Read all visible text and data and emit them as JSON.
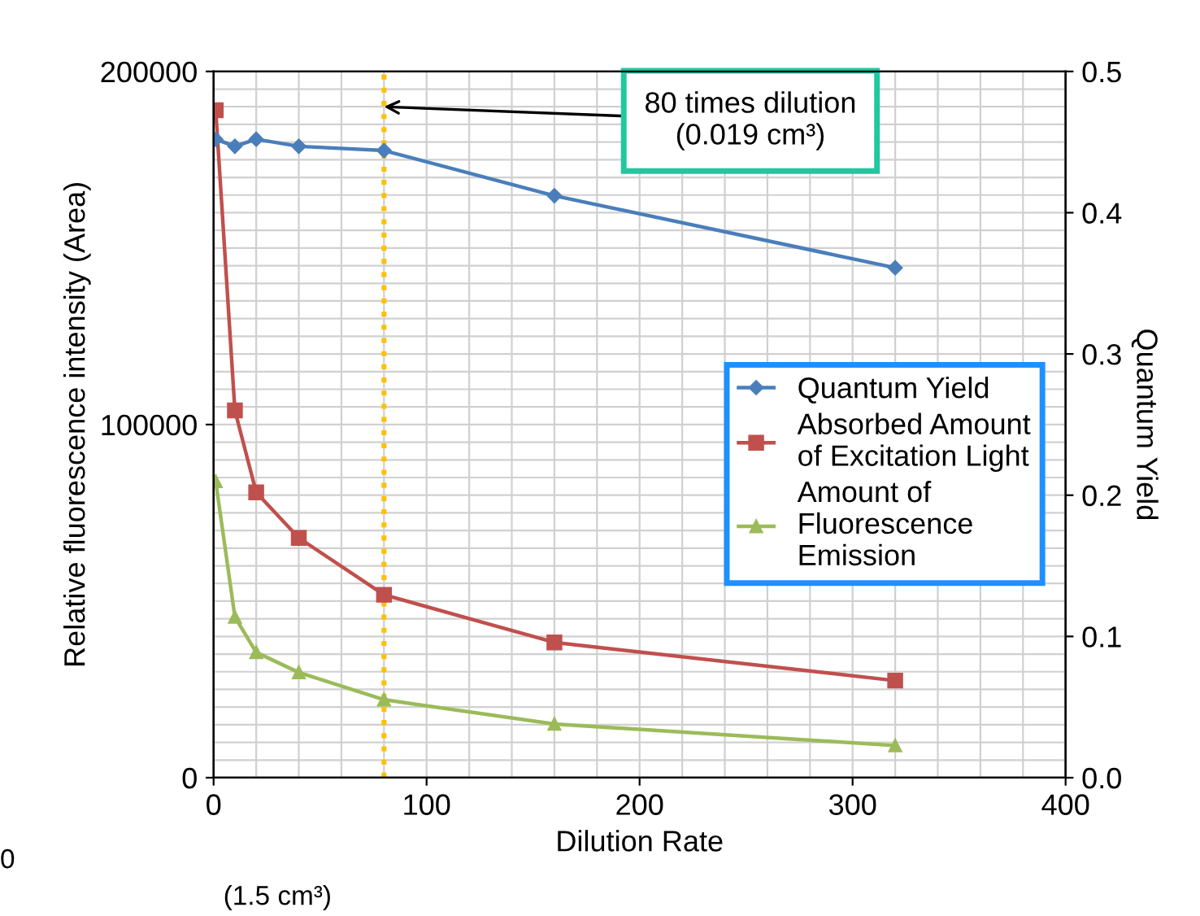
{
  "chart_data": {
    "type": "line",
    "xlabel": "Dilution Rate",
    "ylabel": "Relative fluorescence intensity (Area)",
    "y2label": "Quantum Yield",
    "x": [
      1,
      10,
      20,
      40,
      80,
      160,
      320
    ],
    "series": [
      {
        "name": "Quantum Yield",
        "color": "#4a7ebb",
        "axis": "y2",
        "marker": "diamond",
        "values": [
          0.452,
          0.447,
          0.452,
          0.447,
          0.444,
          0.412,
          0.361
        ]
      },
      {
        "name": "Absorbed Amount\nof Excitation Light",
        "color": "#c0504d",
        "axis": "y",
        "marker": "square",
        "values": [
          189000,
          104000,
          80800,
          67900,
          51800,
          38300,
          27500
        ]
      },
      {
        "name": "Amount of\nFluorescence\nEmission",
        "color": "#9bbb59",
        "axis": "y",
        "marker": "triangle",
        "values": [
          83900,
          45500,
          35500,
          29800,
          22100,
          15200,
          9100
        ]
      }
    ],
    "xlim": [
      0,
      400
    ],
    "xticks": [
      0,
      100,
      200,
      300,
      400
    ],
    "ylim": [
      0,
      200000
    ],
    "yticks": [
      0,
      100000,
      200000
    ],
    "y2lim": [
      0,
      0.5
    ],
    "y2ticks": [
      "0.0",
      0.1,
      0.2,
      0.3,
      0.4,
      0.5
    ],
    "ref_lines": [
      {
        "axis": "x",
        "value": 80,
        "color": "#ffc000",
        "line_style": "dotted"
      }
    ],
    "annotations": [
      {
        "text": "80 times dilution\n(0.019 cm³)",
        "x": 80,
        "y": 190000
      },
      "(1.5 cm³)",
      "0"
    ],
    "grid": true,
    "legend": "center right"
  }
}
